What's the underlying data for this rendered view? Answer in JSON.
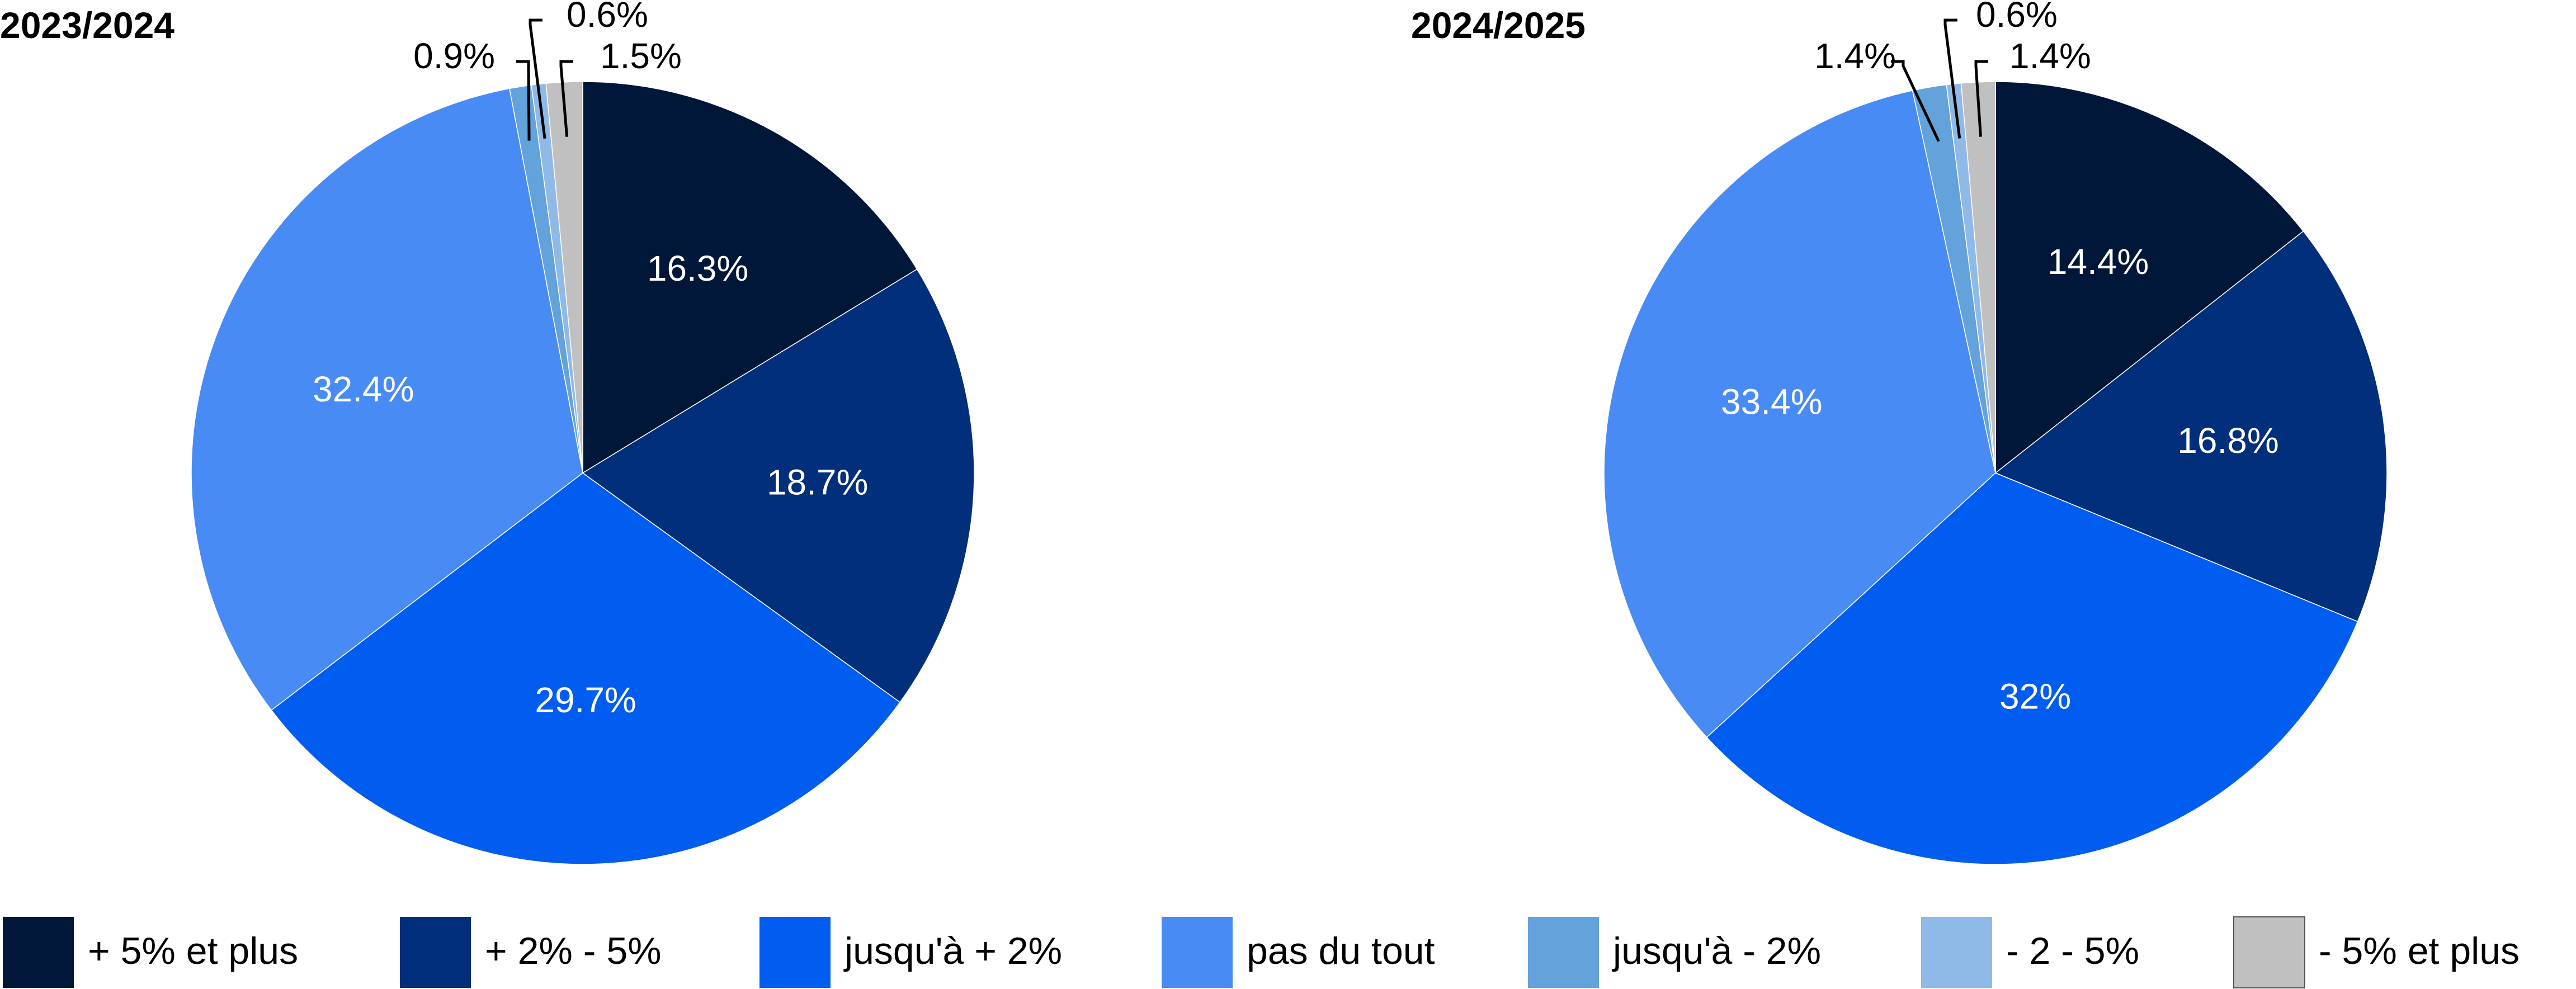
{
  "legend": [
    {
      "label": "+ 5% et plus",
      "color": "#00173A"
    },
    {
      "label": "+ 2% - 5%",
      "color": "#012F7B"
    },
    {
      "label": "jusqu'à + 2%",
      "color": "#005DF0"
    },
    {
      "label": "pas du tout",
      "color": "#498BF4"
    },
    {
      "label": "jusqu'à - 2%",
      "color": "#63A2DA"
    },
    {
      "label": "-  2 - 5%",
      "color": "#8FB9E6"
    },
    {
      "label": "-  5% et plus",
      "color": "#C0C0C0"
    }
  ],
  "chart_data": [
    {
      "type": "pie",
      "title": "2023/2024",
      "categories": [
        "+ 5% et plus",
        "+ 2% - 5%",
        "jusqu'à + 2%",
        "pas du tout",
        "jusqu'à - 2%",
        "-  2 - 5%",
        "-  5% et plus"
      ],
      "values": [
        16.3,
        18.7,
        29.7,
        32.4,
        0.9,
        0.6,
        1.5
      ],
      "labels": [
        "16.3%",
        "18.7%",
        "29.7%",
        "32.4%",
        "0.9%",
        "0.6%",
        "1.5%"
      ]
    },
    {
      "type": "pie",
      "title": "2024/2025",
      "categories": [
        "+ 5% et plus",
        "+ 2% - 5%",
        "jusqu'à + 2%",
        "pas du tout",
        "jusqu'à - 2%",
        "-  2 - 5%",
        "-  5% et plus"
      ],
      "values": [
        14.4,
        16.8,
        32,
        33.4,
        1.4,
        0.6,
        1.4
      ],
      "labels": [
        "14.4%",
        "16.8%",
        "32%",
        "33.4%",
        "1.4%",
        "0.6%",
        "1.4%"
      ]
    }
  ]
}
